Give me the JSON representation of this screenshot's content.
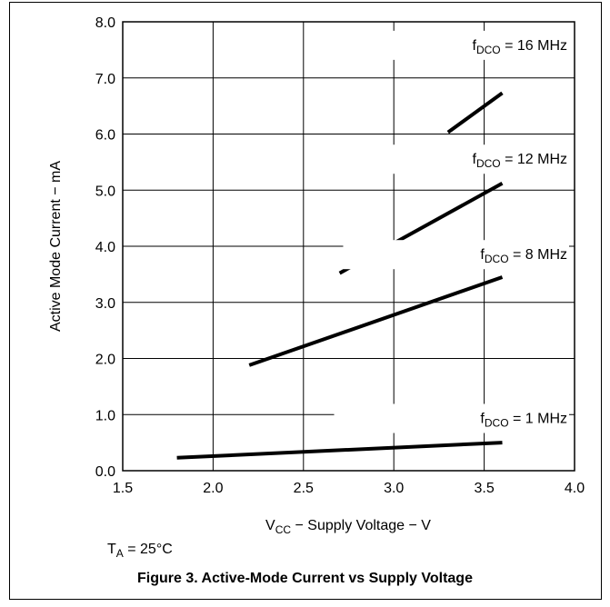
{
  "chart_data": {
    "type": "line",
    "title": "",
    "xlabel": {
      "main": "V",
      "sub": "CC",
      "rest": " − Supply Voltage − V"
    },
    "ylabel": "Active Mode Current − mA",
    "xlim": [
      1.5,
      4.0
    ],
    "ylim": [
      0.0,
      8.0
    ],
    "x_ticks": [
      "1.5",
      "2.0",
      "2.5",
      "3.0",
      "3.5",
      "4.0"
    ],
    "y_ticks": [
      "0.0",
      "1.0",
      "2.0",
      "3.0",
      "4.0",
      "5.0",
      "6.0",
      "7.0",
      "8.0"
    ],
    "grid": true,
    "series": [
      {
        "label_prefix": "f",
        "label_sub": "DCO",
        "label_rest": " = 1 MHz",
        "x": [
          1.8,
          3.6
        ],
        "y": [
          0.23,
          0.5
        ],
        "label_x": 2.72,
        "label_y": 0.85
      },
      {
        "label_prefix": "f",
        "label_sub": "DCO",
        "label_rest": " = 8 MHz",
        "x": [
          2.2,
          3.6
        ],
        "y": [
          1.88,
          3.45
        ],
        "label_x": 2.77,
        "label_y": 3.77
      },
      {
        "label_prefix": "f",
        "label_sub": "DCO",
        "label_rest": " = 12 MHz",
        "x": [
          2.7,
          3.6
        ],
        "y": [
          3.52,
          5.12
        ],
        "label_x": 2.7,
        "label_y": 5.47
      },
      {
        "label_prefix": "f",
        "label_sub": "DCO",
        "label_rest": " = 16 MHz",
        "x": [
          3.3,
          3.6
        ],
        "y": [
          6.03,
          6.73
        ],
        "label_x": 2.7,
        "label_y": 7.5
      }
    ]
  },
  "note": {
    "main": "T",
    "sub": "A",
    "rest": " = 25°C"
  },
  "caption": "Figure 3. Active-Mode Current vs Supply Voltage"
}
